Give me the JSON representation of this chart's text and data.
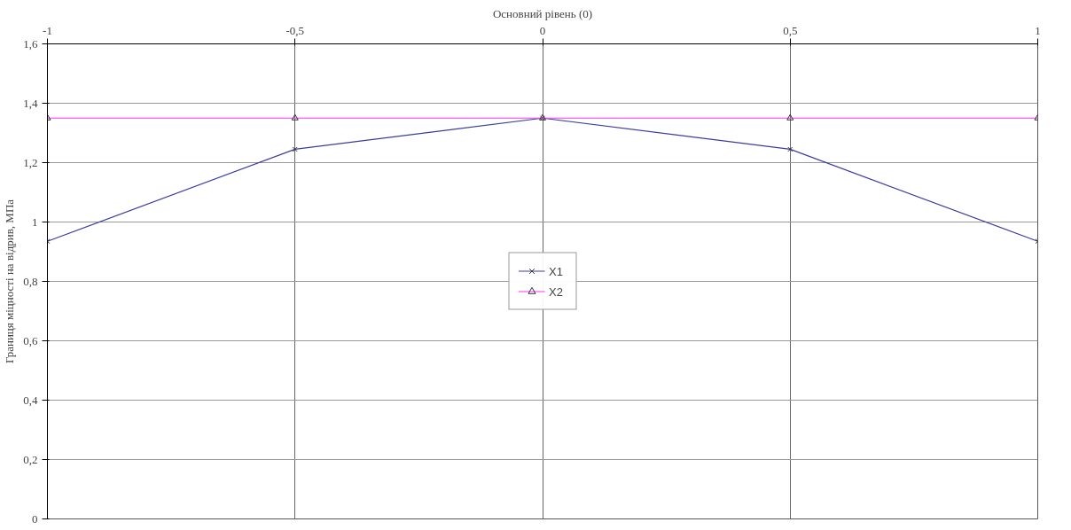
{
  "chart_data": {
    "type": "line",
    "title": "Основний рівень (0)",
    "ylabel": "Границя міцності на відрив, МПа",
    "x": [
      -1,
      -0.5,
      0,
      0.5,
      1
    ],
    "series": [
      {
        "name": "X1",
        "color": "#3c3ca0",
        "marker": "cross",
        "values": [
          0.935,
          1.245,
          1.35,
          1.245,
          0.935
        ]
      },
      {
        "name": "X2",
        "color": "#ff33ff",
        "marker": "triangle",
        "values": [
          1.35,
          1.35,
          1.35,
          1.35,
          1.35
        ]
      }
    ],
    "xlim": [
      -1,
      1
    ],
    "xticks": [
      {
        "value": -1,
        "label": "-1"
      },
      {
        "value": -0.5,
        "label": "-0,5"
      },
      0,
      {
        "value": 0.5,
        "label": "0,5"
      },
      1
    ],
    "ylim": [
      0,
      1.6
    ],
    "yticks": [
      0,
      {
        "value": 0.2,
        "label": "0,2"
      },
      {
        "value": 0.4,
        "label": "0,4"
      },
      {
        "value": 0.6,
        "label": "0,6"
      },
      {
        "value": 0.8,
        "label": "0,8"
      },
      1,
      {
        "value": 1.2,
        "label": "1,2"
      },
      {
        "value": 1.4,
        "label": "1,4"
      },
      {
        "value": 1.6,
        "label": "1,6"
      }
    ],
    "grid": true,
    "legend": "center",
    "line_style": "solid"
  }
}
